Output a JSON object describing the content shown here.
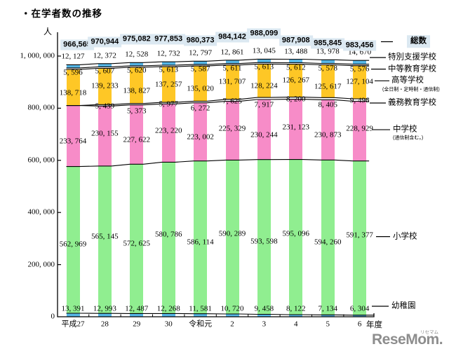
{
  "title": "・在学者数の推移",
  "watermark": {
    "brand": "ReseMom.",
    "ruby": "リセマム"
  },
  "chart_data": {
    "type": "bar",
    "stacked": true,
    "title": "・在学者数の推移",
    "unit_label": "人",
    "xlabel": "年度",
    "ylim": [
      0,
      1000000
    ],
    "ytick_step": 200000,
    "grid": false,
    "legend_position": "right",
    "categories": [
      "平成27",
      "28",
      "29",
      "30",
      "令和元",
      "2",
      "3",
      "4",
      "5",
      "6"
    ],
    "series": [
      {
        "name": "幼稚園",
        "color": "#56b6e6",
        "values": [
          13391,
          12993,
          12487,
          12268,
          11581,
          10720,
          9458,
          8122,
          7134,
          6304
        ]
      },
      {
        "name": "小学校",
        "color": "#90ee90",
        "values": [
          562969,
          565145,
          572625,
          580786,
          586114,
          590289,
          593598,
          595096,
          594260,
          591377
        ]
      },
      {
        "name": "中学校",
        "note": "(通信制含む。)",
        "color": "#f78cc8",
        "values": [
          233764,
          230155,
          227622,
          223220,
          223002,
          225329,
          230244,
          231123,
          230873,
          228929
        ]
      },
      {
        "name": "義務教育学校",
        "color": "#ffffff",
        "values": [
          null,
          5439,
          5373,
          5977,
          6272,
          7625,
          7917,
          8200,
          8405,
          9496
        ]
      },
      {
        "name": "高等学校",
        "note": "(全日制・定時制・通信制)",
        "color": "#fec726",
        "values": [
          138718,
          139233,
          138827,
          137257,
          135020,
          131707,
          128224,
          126267,
          125617,
          127104
        ]
      },
      {
        "name": "中等教育学校",
        "color": "#ffffff",
        "values": [
          5596,
          5607,
          5620,
          5613,
          5587,
          5611,
          5613,
          5612,
          5578,
          5576
        ]
      },
      {
        "name": "特別支援学校",
        "color": "#56b6e6",
        "values": [
          12127,
          12372,
          12528,
          12732,
          12797,
          12861,
          13045,
          13488,
          13978,
          14670
        ]
      }
    ],
    "totals": {
      "name": "総数",
      "box_color": "#dbe8f1",
      "values": [
        966565,
        970944,
        975082,
        977853,
        980373,
        984142,
        988099,
        987908,
        985845,
        983456
      ]
    },
    "line_color": "#000000"
  }
}
